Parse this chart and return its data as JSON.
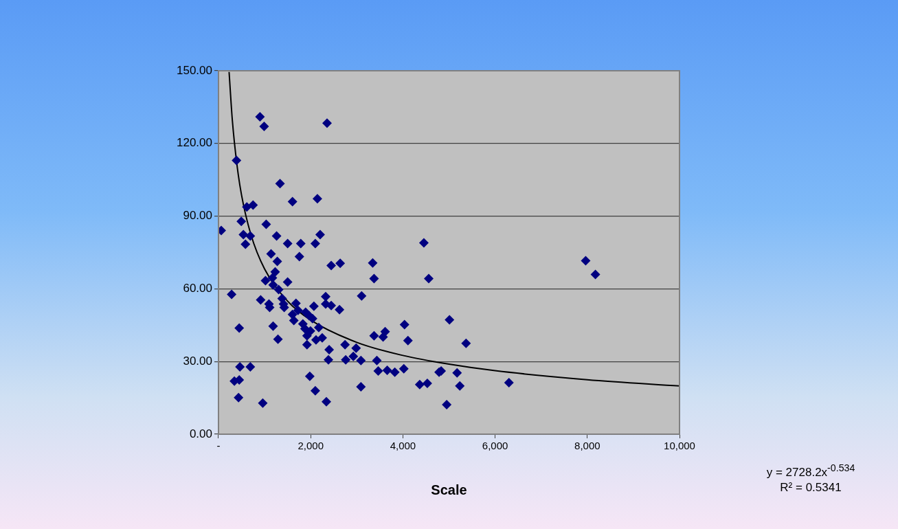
{
  "chart_data": {
    "type": "scatter",
    "xlabel": "Scale",
    "marker": "diamond",
    "grid": "y",
    "legend": false,
    "xlim": [
      0,
      10000
    ],
    "xticks": [
      {
        "value": 0,
        "label": "-"
      },
      {
        "value": 2000,
        "label": "2,000"
      },
      {
        "value": 4000,
        "label": "4,000"
      },
      {
        "value": 6000,
        "label": "6,000"
      },
      {
        "value": 8000,
        "label": "8,000"
      },
      {
        "value": 10000,
        "label": "10,000"
      }
    ],
    "ylim": [
      0,
      150
    ],
    "yticks": [
      {
        "value": 0,
        "label": "0.00"
      },
      {
        "value": 30,
        "label": "30.00"
      },
      {
        "value": 60,
        "label": "60.00"
      },
      {
        "value": 90,
        "label": "90.00"
      },
      {
        "value": 120,
        "label": "120.00"
      },
      {
        "value": 150,
        "label": "150.00"
      }
    ],
    "series": [
      {
        "type": "scatter",
        "color": "#000080",
        "x": [
          60,
          285,
          345,
          390,
          450,
          465,
          450,
          435,
          495,
          540,
          585,
          615,
          690,
          750,
          690,
          900,
          915,
          960,
          990,
          1035,
          1020,
          1095,
          1110,
          1140,
          1185,
          1170,
          1185,
          1230,
          1260,
          1275,
          1290,
          1305,
          1335,
          1380,
          1410,
          1425,
          1500,
          1500,
          1605,
          1605,
          1635,
          1680,
          1725,
          1755,
          1785,
          1830,
          1875,
          1890,
          1920,
          1920,
          1965,
          1995,
          1980,
          2040,
          2070,
          2100,
          2115,
          2145,
          2100,
          2205,
          2175,
          2250,
          2325,
          2325,
          2340,
          2355,
          2400,
          2385,
          2445,
          2445,
          2625,
          2640,
          2745,
          2760,
          2925,
          2985,
          3090,
          3105,
          3090,
          3345,
          3375,
          3375,
          3435,
          3465,
          3570,
          3615,
          3660,
          3825,
          4035,
          4020,
          4110,
          4365,
          4455,
          4530,
          4560,
          4785,
          4830,
          4950,
          5010,
          5175,
          5235,
          5370,
          6300,
          7965,
          8175
        ],
        "values": [
          84.1,
          57.7,
          21.9,
          113,
          43.8,
          27.8,
          22.4,
          15.1,
          87.8,
          82.4,
          78.4,
          93.8,
          81.8,
          94.6,
          27.8,
          131,
          55.4,
          12.8,
          127,
          86.6,
          63.4,
          53.7,
          52.3,
          74.4,
          61.6,
          64.5,
          44.6,
          67,
          81.8,
          71.3,
          39.2,
          59.7,
          103.4,
          56,
          53.7,
          52.3,
          62.8,
          78.7,
          96,
          49.4,
          46.9,
          54,
          51.1,
          73.3,
          78.7,
          45.5,
          43.5,
          50.3,
          36.9,
          40.6,
          48.9,
          42.6,
          23.9,
          47.7,
          52.8,
          17.9,
          38.9,
          97.2,
          78.7,
          82.4,
          44,
          39.8,
          56.8,
          53.7,
          13.4,
          128.4,
          34.9,
          30.7,
          69.6,
          53.1,
          51.4,
          70.5,
          36.9,
          30.7,
          32.1,
          35.5,
          19.6,
          57.1,
          30.4,
          70.7,
          64.2,
          40.6,
          30.4,
          26.1,
          40.1,
          42.3,
          26.4,
          25.6,
          45.2,
          27,
          38.6,
          20.5,
          79,
          21,
          64.2,
          25.6,
          26.1,
          12.2,
          47.2,
          25.3,
          19.9,
          37.5,
          21.3,
          71.6,
          65.9
        ]
      },
      {
        "type": "line",
        "color": "#000000",
        "marker": "none",
        "line_style": "solid",
        "x": [
          230,
          300,
          400,
          500,
          700,
          1000,
          1500,
          2000,
          3000,
          4000,
          5000,
          6000,
          8000,
          10000
        ],
        "values": [
          149.5,
          129.7,
          111.3,
          98.7,
          82.6,
          68.2,
          54.9,
          47.1,
          37.9,
          32.5,
          28.9,
          26.2,
          22.5,
          19.9
        ]
      }
    ],
    "annotations": [
      "y = 2728.2x$^{-0.534}$",
      "R² = 0.5341"
    ]
  }
}
